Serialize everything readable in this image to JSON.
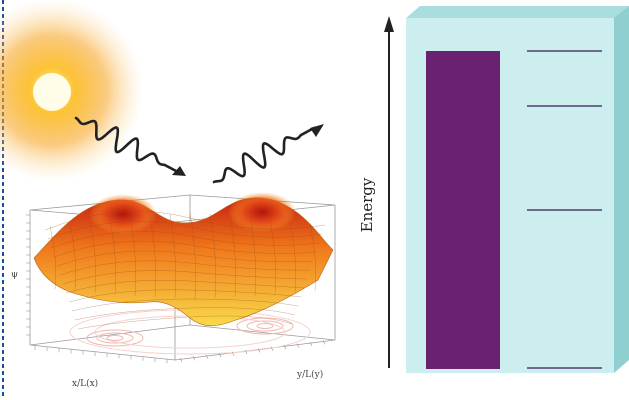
{
  "colors": {
    "sun_core": "#fffde8",
    "sun_glow": "#f7a21b",
    "surface_high": "#c81f10",
    "surface_mid": "#f07a1c",
    "surface_low": "#f9d94a",
    "box_face": "#cdeeee",
    "box_top": "#a9dede",
    "box_side": "#8fcfcf",
    "band_fill": "#6a2170",
    "level_line": "#6b6b8f",
    "dashed_border": "#1a4fa0"
  },
  "icons": {
    "sun": "sun-icon",
    "incoming_photon": "wavy-photon-arrow-icon",
    "outgoing_photon": "wavy-photon-arrow-icon",
    "energy_arrow": "up-arrow-icon"
  },
  "plot3d": {
    "x_axis_label": "x/L(x)",
    "y_axis_label": "y/L(y)",
    "z_axis_label": "ψ"
  },
  "energy_diagram": {
    "axis_label": "Energy",
    "discrete_levels": 4,
    "filled_band": "continuous band (filled)"
  }
}
